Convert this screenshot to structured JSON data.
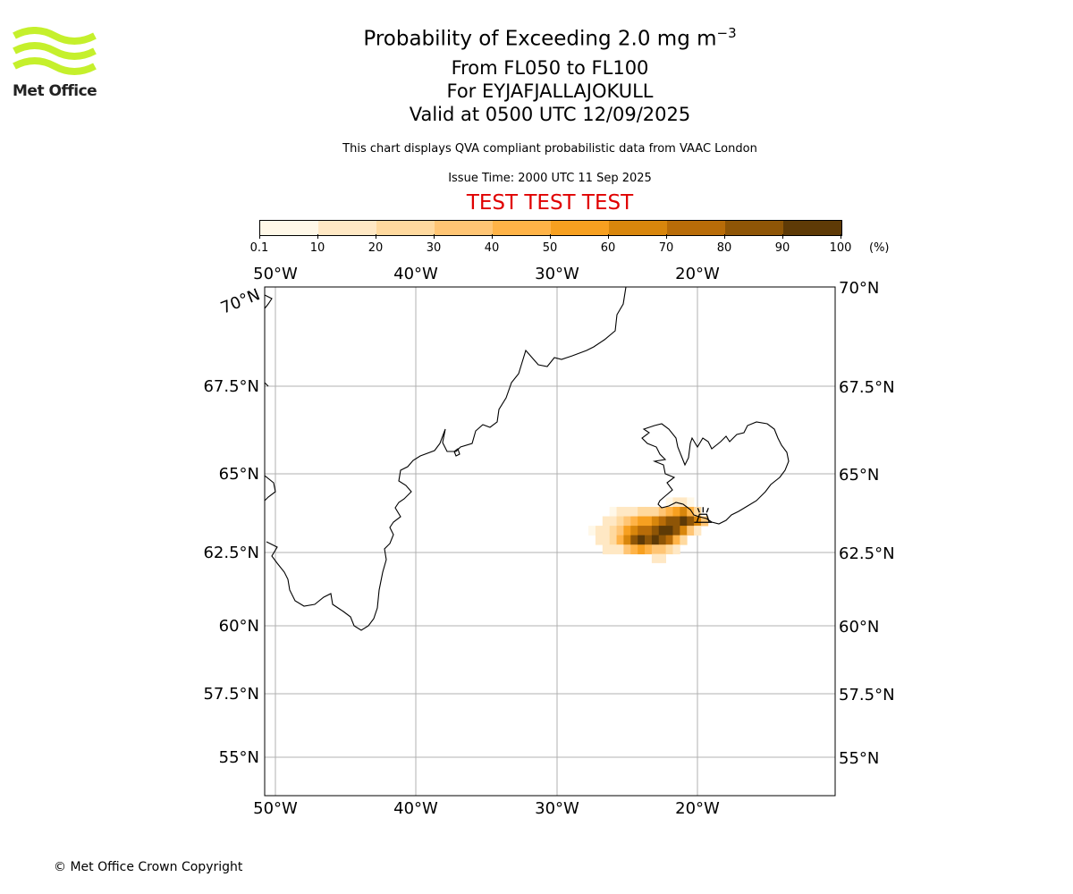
{
  "logo": {
    "text": "Met Office",
    "color": "#c5f02c"
  },
  "title": {
    "line1": "Probability of Exceeding 2.0 mg m",
    "line1_sup": "−3",
    "line2": "From FL050 to FL100",
    "line3": "For EYJAFJALLAJOKULL",
    "line4": "Valid at 0500 UTC 12/09/2025",
    "subtitle": "This chart displays QVA compliant probabilistic data from VAAC London",
    "issue_time": "Issue Time: 2000 UTC 11 Sep 2025",
    "test_banner": "TEST TEST TEST"
  },
  "colorbar": {
    "labels": [
      "0.1",
      "10",
      "20",
      "30",
      "40",
      "50",
      "60",
      "70",
      "80",
      "90",
      "100"
    ],
    "colors": [
      "#fff8e8",
      "#ffe8c4",
      "#ffd99e",
      "#ffc574",
      "#ffb347",
      "#f7a020",
      "#d8860c",
      "#b86c08",
      "#8e5506",
      "#5e3a06"
    ],
    "unit": "(%)"
  },
  "map": {
    "lon_labels": [
      "50°W",
      "40°W",
      "30°W",
      "20°W"
    ],
    "lat_labels_left": [
      "70°N",
      "67.5°N",
      "65°N",
      "62.5°N",
      "60°N",
      "57.5°N",
      "55°N"
    ],
    "lat_labels_right": [
      "70°N",
      "67.5°N",
      "65°N",
      "62.5°N",
      "60°N",
      "57.5°N",
      "55°N"
    ],
    "volcano": {
      "name": "EYJAFJALLAJOKULL",
      "lon": -19.6,
      "lat": 63.6
    },
    "ash_cells": [
      {
        "lon": -27.5,
        "lat": 63.2,
        "p": 5
      },
      {
        "lon": -27.0,
        "lat": 63.2,
        "p": 15
      },
      {
        "lon": -27.0,
        "lat": 62.9,
        "p": 15
      },
      {
        "lon": -26.5,
        "lat": 63.5,
        "p": 15
      },
      {
        "lon": -26.5,
        "lat": 63.2,
        "p": 15
      },
      {
        "lon": -26.5,
        "lat": 62.9,
        "p": 15
      },
      {
        "lon": -26.5,
        "lat": 62.6,
        "p": 15
      },
      {
        "lon": -26.0,
        "lat": 63.8,
        "p": 5
      },
      {
        "lon": -26.0,
        "lat": 63.5,
        "p": 15
      },
      {
        "lon": -26.0,
        "lat": 63.2,
        "p": 25
      },
      {
        "lon": -26.0,
        "lat": 62.9,
        "p": 25
      },
      {
        "lon": -26.0,
        "lat": 62.6,
        "p": 15
      },
      {
        "lon": -25.5,
        "lat": 63.8,
        "p": 15
      },
      {
        "lon": -25.5,
        "lat": 63.5,
        "p": 25
      },
      {
        "lon": -25.5,
        "lat": 63.2,
        "p": 35
      },
      {
        "lon": -25.5,
        "lat": 62.9,
        "p": 45
      },
      {
        "lon": -25.5,
        "lat": 62.6,
        "p": 15
      },
      {
        "lon": -25.0,
        "lat": 63.8,
        "p": 15
      },
      {
        "lon": -25.0,
        "lat": 63.5,
        "p": 35
      },
      {
        "lon": -25.0,
        "lat": 63.2,
        "p": 55
      },
      {
        "lon": -25.0,
        "lat": 62.9,
        "p": 65
      },
      {
        "lon": -25.0,
        "lat": 62.6,
        "p": 35
      },
      {
        "lon": -24.5,
        "lat": 63.8,
        "p": 15
      },
      {
        "lon": -24.5,
        "lat": 63.5,
        "p": 45
      },
      {
        "lon": -24.5,
        "lat": 63.2,
        "p": 65
      },
      {
        "lon": -24.5,
        "lat": 62.9,
        "p": 85
      },
      {
        "lon": -24.5,
        "lat": 62.6,
        "p": 45
      },
      {
        "lon": -24.0,
        "lat": 63.8,
        "p": 25
      },
      {
        "lon": -24.0,
        "lat": 63.5,
        "p": 55
      },
      {
        "lon": -24.0,
        "lat": 63.2,
        "p": 75
      },
      {
        "lon": -24.0,
        "lat": 62.9,
        "p": 95
      },
      {
        "lon": -24.0,
        "lat": 62.6,
        "p": 55
      },
      {
        "lon": -23.5,
        "lat": 63.8,
        "p": 25
      },
      {
        "lon": -23.5,
        "lat": 63.5,
        "p": 55
      },
      {
        "lon": -23.5,
        "lat": 63.2,
        "p": 75
      },
      {
        "lon": -23.5,
        "lat": 62.9,
        "p": 85
      },
      {
        "lon": -23.5,
        "lat": 62.6,
        "p": 45
      },
      {
        "lon": -23.0,
        "lat": 63.8,
        "p": 25
      },
      {
        "lon": -23.0,
        "lat": 63.5,
        "p": 65
      },
      {
        "lon": -23.0,
        "lat": 63.2,
        "p": 85
      },
      {
        "lon": -23.0,
        "lat": 62.9,
        "p": 95
      },
      {
        "lon": -23.0,
        "lat": 62.6,
        "p": 35
      },
      {
        "lon": -23.0,
        "lat": 62.3,
        "p": 15
      },
      {
        "lon": -22.5,
        "lat": 63.8,
        "p": 35
      },
      {
        "lon": -22.5,
        "lat": 63.5,
        "p": 75
      },
      {
        "lon": -22.5,
        "lat": 63.2,
        "p": 95
      },
      {
        "lon": -22.5,
        "lat": 62.9,
        "p": 85
      },
      {
        "lon": -22.5,
        "lat": 62.6,
        "p": 35
      },
      {
        "lon": -22.5,
        "lat": 62.3,
        "p": 15
      },
      {
        "lon": -22.0,
        "lat": 64.1,
        "p": 5
      },
      {
        "lon": -22.0,
        "lat": 63.8,
        "p": 45
      },
      {
        "lon": -22.0,
        "lat": 63.5,
        "p": 85
      },
      {
        "lon": -22.0,
        "lat": 63.2,
        "p": 95
      },
      {
        "lon": -22.0,
        "lat": 62.9,
        "p": 75
      },
      {
        "lon": -22.0,
        "lat": 62.6,
        "p": 25
      },
      {
        "lon": -21.5,
        "lat": 64.1,
        "p": 15
      },
      {
        "lon": -21.5,
        "lat": 63.8,
        "p": 55
      },
      {
        "lon": -21.5,
        "lat": 63.5,
        "p": 85
      },
      {
        "lon": -21.5,
        "lat": 63.2,
        "p": 85
      },
      {
        "lon": -21.5,
        "lat": 62.9,
        "p": 45
      },
      {
        "lon": -21.5,
        "lat": 62.6,
        "p": 15
      },
      {
        "lon": -21.0,
        "lat": 64.1,
        "p": 15
      },
      {
        "lon": -21.0,
        "lat": 63.8,
        "p": 65
      },
      {
        "lon": -21.0,
        "lat": 63.5,
        "p": 95
      },
      {
        "lon": -21.0,
        "lat": 63.2,
        "p": 65
      },
      {
        "lon": -21.0,
        "lat": 62.9,
        "p": 25
      },
      {
        "lon": -20.5,
        "lat": 64.1,
        "p": 5
      },
      {
        "lon": -20.5,
        "lat": 63.8,
        "p": 45
      },
      {
        "lon": -20.5,
        "lat": 63.5,
        "p": 85
      },
      {
        "lon": -20.5,
        "lat": 63.2,
        "p": 35
      },
      {
        "lon": -20.0,
        "lat": 63.8,
        "p": 25
      },
      {
        "lon": -20.0,
        "lat": 63.5,
        "p": 65
      },
      {
        "lon": -20.0,
        "lat": 63.2,
        "p": 15
      },
      {
        "lon": -19.5,
        "lat": 63.5,
        "p": 35
      }
    ]
  },
  "footer": {
    "copyright": "© Met Office Crown Copyright"
  }
}
